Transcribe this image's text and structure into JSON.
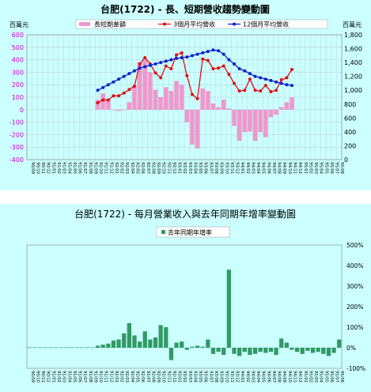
{
  "chart_data": [
    {
      "type": "bar+line",
      "title": "台肥(1722) -  長、短期營收趨勢變動圖",
      "left_unit": "百萬元",
      "right_unit": "百萬元",
      "left_ylim": [
        -400,
        600
      ],
      "left_yticks": [
        "-400",
        "-300",
        "-200",
        "-100",
        "0",
        "100",
        "200",
        "300",
        "400",
        "500",
        "600"
      ],
      "right_ylim": [
        0,
        1800
      ],
      "right_yticks": [
        "0",
        "200",
        "400",
        "600",
        "800",
        "1,000",
        "1,200",
        "1,400",
        "1,600",
        "1,800"
      ],
      "legend": [
        "長短期差額",
        "3個月平均營收",
        "12個月平均營收"
      ],
      "colors": {
        "bar": "#ee99cc",
        "short": "#e01010",
        "long": "#1020cc",
        "grid": "#9999bb"
      },
      "x": [
        "90/09",
        "90/10",
        "90/11",
        "90/12",
        "91/01",
        "91/02",
        "91/03",
        "91/04",
        "91/05",
        "91/06",
        "91/07",
        "91/08",
        "91/09",
        "91/10",
        "91/11",
        "91/12",
        "92/01",
        "92/02",
        "92/03",
        "92/04",
        "92/05",
        "92/06",
        "92/07",
        "92/08",
        "92/09",
        "92/10",
        "92/11",
        "92/12",
        "93/01",
        "93/02",
        "93/03",
        "93/04",
        "93/05",
        "93/06",
        "93/07",
        "93/08",
        "93/09",
        "93/10",
        "93/11",
        "93/12",
        "94/01",
        "94/02",
        "94/03",
        "94/04",
        "94/05",
        "94/06",
        "94/07",
        "94/08",
        "94/09",
        "94/10",
        "94/11",
        "94/12",
        "95/01",
        "95/02",
        "95/03",
        "95/04",
        "95/05",
        "95/06",
        "95/07",
        "95/08"
      ],
      "diff": [
        null,
        null,
        null,
        null,
        null,
        null,
        null,
        null,
        null,
        null,
        null,
        null,
        null,
        80,
        130,
        80,
        -5,
        -10,
        -5,
        60,
        190,
        380,
        400,
        300,
        160,
        100,
        180,
        150,
        230,
        200,
        -100,
        -280,
        -310,
        170,
        150,
        50,
        20,
        80,
        10,
        -130,
        -250,
        -180,
        -175,
        -250,
        -180,
        -220,
        -60,
        -40,
        20,
        60,
        100,
        null,
        null,
        null,
        null,
        null,
        null,
        null,
        null,
        null
      ],
      "short": [
        null,
        null,
        null,
        null,
        null,
        null,
        null,
        null,
        null,
        null,
        null,
        null,
        null,
        820,
        860,
        860,
        920,
        920,
        960,
        1010,
        1060,
        1380,
        1470,
        1380,
        1250,
        1180,
        1350,
        1310,
        1510,
        1540,
        1210,
        940,
        880,
        1450,
        1430,
        1310,
        1320,
        1350,
        1230,
        1100,
        990,
        1000,
        1160,
        1000,
        990,
        1070,
        980,
        1000,
        1150,
        1180,
        1300,
        null,
        null,
        null,
        null,
        null,
        null,
        null,
        null,
        null
      ],
      "long": [
        null,
        null,
        null,
        null,
        null,
        null,
        null,
        null,
        null,
        null,
        null,
        null,
        null,
        1000,
        1040,
        1080,
        1120,
        1160,
        1200,
        1240,
        1280,
        1320,
        1340,
        1360,
        1380,
        1400,
        1420,
        1440,
        1460,
        1470,
        1480,
        1500,
        1520,
        1540,
        1560,
        1580,
        1570,
        1520,
        1440,
        1380,
        1310,
        1280,
        1240,
        1200,
        1180,
        1160,
        1140,
        1120,
        1100,
        1080,
        1070,
        null,
        null,
        null,
        null,
        null,
        null,
        null,
        null,
        null
      ]
    },
    {
      "type": "bar",
      "title": "台肥(1722) -  每月營業收入與去年同期年增率變動圖",
      "legend": [
        "去年同期年增率"
      ],
      "colors": {
        "bar": "#339966"
      },
      "ylim": [
        -100,
        500
      ],
      "yticks": [
        "-100%",
        "0%",
        "100%",
        "200%",
        "300%",
        "400%",
        "500%"
      ],
      "x": [
        "90/09",
        "90/10",
        "90/11",
        "90/12",
        "91/01",
        "91/02",
        "91/03",
        "91/04",
        "91/05",
        "91/06",
        "91/07",
        "91/08",
        "91/09",
        "91/10",
        "91/11",
        "91/12",
        "92/01",
        "92/02",
        "92/03",
        "92/04",
        "92/05",
        "92/06",
        "92/07",
        "92/08",
        "92/09",
        "92/10",
        "92/11",
        "92/12",
        "93/01",
        "93/02",
        "93/03",
        "93/04",
        "93/05",
        "93/06",
        "93/07",
        "93/08",
        "93/09",
        "93/10",
        "93/11",
        "93/12",
        "94/01",
        "94/02",
        "94/03",
        "94/04",
        "94/05",
        "94/06",
        "94/07",
        "94/08",
        "94/09",
        "94/10",
        "94/11",
        "94/12",
        "95/01",
        "95/02",
        "95/03",
        "95/04",
        "95/05",
        "95/06",
        "95/07",
        "95/08"
      ],
      "values": [
        2,
        2,
        2,
        2,
        2,
        2,
        2,
        2,
        2,
        2,
        2,
        2,
        2,
        10,
        15,
        20,
        35,
        40,
        70,
        120,
        60,
        30,
        80,
        40,
        50,
        110,
        100,
        -60,
        25,
        30,
        -10,
        5,
        10,
        5,
        40,
        -30,
        -20,
        -35,
        380,
        -30,
        -40,
        -20,
        -35,
        -30,
        -20,
        -25,
        -20,
        -35,
        45,
        25,
        -10,
        -20,
        -30,
        -15,
        -25,
        -20,
        -30,
        -40,
        -25,
        40
      ]
    }
  ]
}
